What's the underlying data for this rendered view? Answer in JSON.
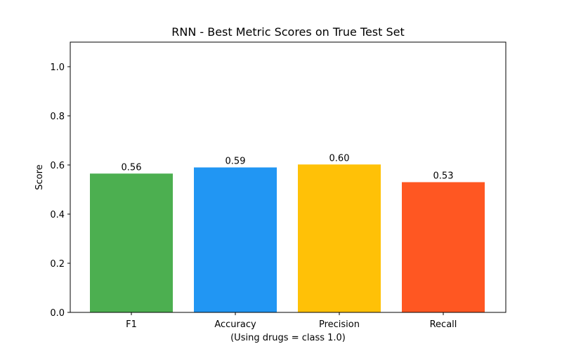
{
  "chart_data": {
    "type": "bar",
    "title": "RNN - Best Metric Scores on True Test Set",
    "xlabel": "(Using drugs = class 1.0)",
    "ylabel": "Score",
    "categories": [
      "F1",
      "Accuracy",
      "Precision",
      "Recall"
    ],
    "values": [
      0.565,
      0.59,
      0.602,
      0.53
    ],
    "value_labels": [
      "0.56",
      "0.59",
      "0.60",
      "0.53"
    ],
    "colors": [
      "#4caf50",
      "#2196f3",
      "#ffc107",
      "#ff5722"
    ],
    "ylim": [
      0,
      1.1
    ],
    "yticks": [
      0.0,
      0.2,
      0.4,
      0.6,
      0.8,
      1.0
    ],
    "ytick_labels": [
      "0.0",
      "0.2",
      "0.4",
      "0.6",
      "0.8",
      "1.0"
    ],
    "grid": false,
    "legend": "none"
  }
}
